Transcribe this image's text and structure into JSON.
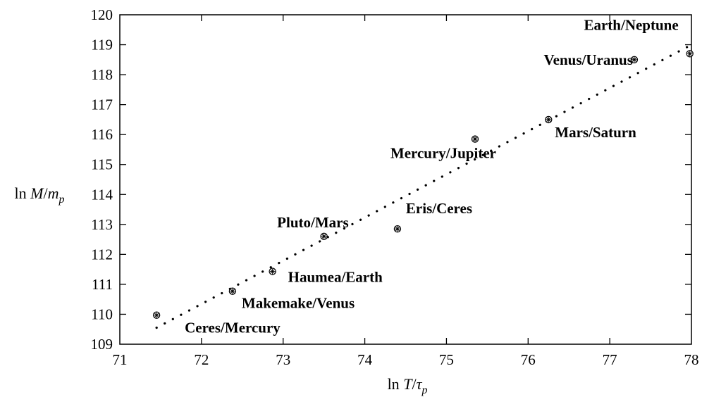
{
  "chart_data": {
    "type": "scatter",
    "title": "",
    "xlabel": "ln T/τ_p",
    "ylabel": "ln M/m_p",
    "xlim": [
      71,
      78
    ],
    "ylim": [
      109,
      120
    ],
    "xticks": [
      71,
      72,
      73,
      74,
      75,
      76,
      77,
      78
    ],
    "yticks": [
      109,
      110,
      111,
      112,
      113,
      114,
      115,
      116,
      117,
      118,
      119,
      120
    ],
    "grid": false,
    "points": [
      {
        "label": "Ceres/Mercury",
        "x": 71.45,
        "y": 109.97
      },
      {
        "label": "Makemake/Venus",
        "x": 72.38,
        "y": 110.77
      },
      {
        "label": "Haumea/Earth",
        "x": 72.87,
        "y": 111.43
      },
      {
        "label": "Pluto/Mars",
        "x": 73.5,
        "y": 112.6
      },
      {
        "label": "Eris/Ceres",
        "x": 74.4,
        "y": 112.85
      },
      {
        "label": "Mercury/Jupiter",
        "x": 75.35,
        "y": 115.85
      },
      {
        "label": "Mars/Saturn",
        "x": 76.25,
        "y": 116.5
      },
      {
        "label": "Venus/Uranus",
        "x": 77.3,
        "y": 118.5
      },
      {
        "label": "Earth/Neptune",
        "x": 77.98,
        "y": 118.7
      }
    ],
    "fit_line": {
      "style": "dotted",
      "x": [
        71.45,
        78.0
      ],
      "y": [
        109.55,
        119.0
      ]
    }
  }
}
